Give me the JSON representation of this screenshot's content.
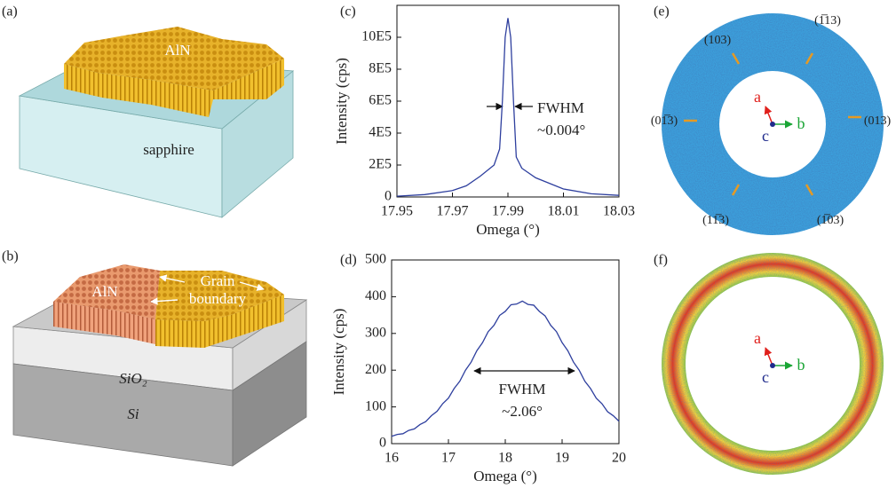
{
  "panel_labels": [
    "(a)",
    "(b)",
    "(c)",
    "(d)",
    "(e)",
    "(f)"
  ],
  "illustration_a": {
    "film": "AlN",
    "substrate": "sapphire"
  },
  "illustration_b": {
    "film": "AlN",
    "annotation": [
      "Grain",
      "boundary"
    ],
    "layers": [
      "SiO₂",
      "Si"
    ]
  },
  "pole_figure_e": {
    "poles": [
      "(103)",
      "(1̅13)",
      "(01̅3)",
      "(013)",
      "(11̅3)",
      "(1̅03)"
    ],
    "axes": [
      "a",
      "b",
      "c"
    ]
  },
  "pole_figure_f": {
    "axes": [
      "a",
      "b",
      "c"
    ]
  },
  "chart_data": [
    {
      "type": "line",
      "x_label": "Omega (°)",
      "y_label": "Intensity (cps)",
      "color": "#2e3f9e",
      "x": [
        17.95,
        17.96,
        17.97,
        17.975,
        17.98,
        17.985,
        17.987,
        17.988,
        17.989,
        17.99,
        17.991,
        17.992,
        17.993,
        17.995,
        18.0,
        18.01,
        18.02,
        18.03
      ],
      "values": [
        5000,
        15000,
        40000,
        70000,
        130000,
        200000,
        300000,
        600000,
        1000000,
        1120000,
        1000000,
        600000,
        250000,
        180000,
        120000,
        50000,
        20000,
        10000
      ],
      "xlim": [
        17.95,
        18.03
      ],
      "xticks": [
        17.95,
        17.97,
        17.99,
        18.01,
        18.03
      ],
      "ylim": [
        0,
        1200000
      ],
      "yticks": [
        0,
        {
          "value": 200000,
          "label": "2E5"
        },
        {
          "value": 400000,
          "label": "4E5"
        },
        {
          "value": 600000,
          "label": "6E5"
        },
        {
          "value": 800000,
          "label": "8E5"
        },
        {
          "value": 1000000,
          "label": "10E5"
        }
      ],
      "annotations": [
        "FWHM",
        "~0.004°"
      ]
    },
    {
      "type": "line",
      "x_label": "Omega (°)",
      "y_label": "Intensity (cps)",
      "color": "#2e3f9e",
      "x": [
        16.0,
        16.1,
        16.2,
        16.3,
        16.4,
        16.5,
        16.6,
        16.7,
        16.8,
        16.9,
        17.0,
        17.1,
        17.2,
        17.3,
        17.4,
        17.5,
        17.6,
        17.7,
        17.8,
        17.9,
        18.0,
        18.1,
        18.2,
        18.3,
        18.4,
        18.5,
        18.6,
        18.7,
        18.8,
        18.9,
        19.0,
        19.1,
        19.2,
        19.3,
        19.4,
        19.5,
        19.6,
        19.7,
        19.8,
        19.9,
        20.0
      ],
      "values": [
        20,
        25,
        27,
        36,
        40,
        52,
        60,
        76,
        88,
        109,
        124,
        150,
        170,
        200,
        222,
        253,
        275,
        305,
        322,
        349,
        360,
        378,
        380,
        388,
        379,
        377,
        360,
        348,
        322,
        305,
        275,
        253,
        222,
        200,
        170,
        150,
        124,
        109,
        87,
        76,
        61
      ],
      "xlim": [
        16,
        20
      ],
      "xticks": [
        16,
        17,
        18,
        19,
        20
      ],
      "ylim": [
        0,
        500
      ],
      "yticks": [
        0,
        100,
        200,
        300,
        400,
        500
      ],
      "annotations": [
        "FWHM",
        "~2.06°"
      ]
    }
  ]
}
